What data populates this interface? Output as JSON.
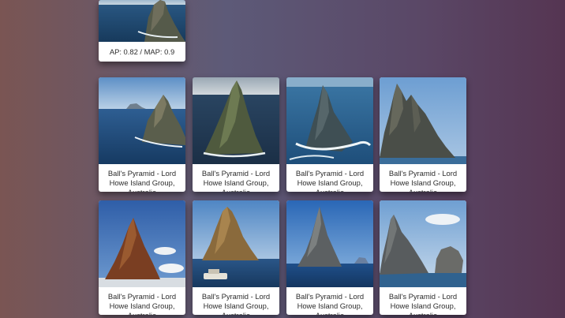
{
  "query": {
    "score_label": "AP: 0.82 / MAP: 0.9"
  },
  "results": [
    {
      "caption": "Ball's Pyramid - Lord Howe Island Group, Australia"
    },
    {
      "caption": "Ball's Pyramid - Lord Howe Island Group, Australia"
    },
    {
      "caption": "Ball's Pyramid - Lord Howe Island Group, Australia"
    },
    {
      "caption": "Ball's Pyramid - Lord Howe Island Group, Australia"
    },
    {
      "caption": "Ball's Pyramid - Lord Howe Island Group, Australia"
    },
    {
      "caption": "Ball's Pyramid - Lord Howe Island Group, Australia"
    },
    {
      "caption": "Ball's Pyramid - Lord Howe Island Group, Australia"
    },
    {
      "caption": "Ball's Pyramid - Lord Howe Island Group, Australia"
    }
  ]
}
